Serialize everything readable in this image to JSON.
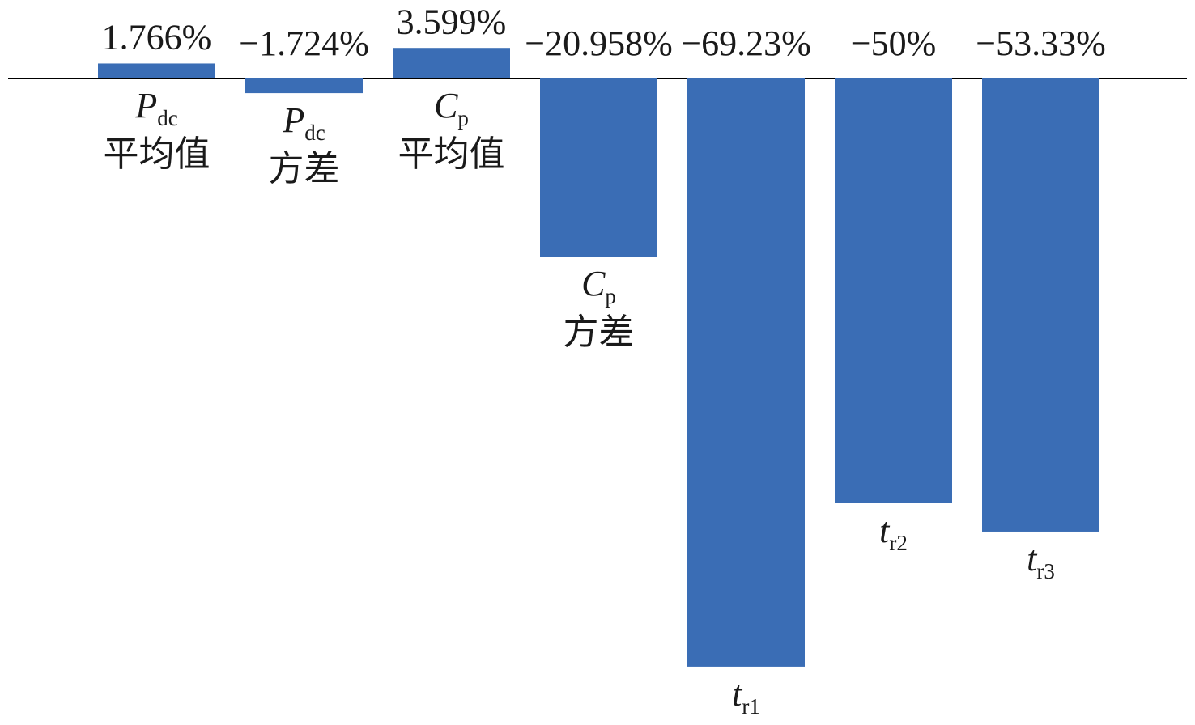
{
  "chart_data": {
    "type": "bar",
    "categories": [
      {
        "symbol": "P",
        "subscript": "dc",
        "text": "平均值"
      },
      {
        "symbol": "P",
        "subscript": "dc",
        "text": "方差"
      },
      {
        "symbol": "C",
        "subscript": "p",
        "text": "平均值"
      },
      {
        "symbol": "C",
        "subscript": "p",
        "text": "方差"
      },
      {
        "symbol": "t",
        "subscript": "r1"
      },
      {
        "symbol": "t",
        "subscript": "r2"
      },
      {
        "symbol": "t",
        "subscript": "r3"
      }
    ],
    "values": [
      1.766,
      -1.724,
      3.599,
      -20.958,
      -69.23,
      -50,
      -53.33
    ],
    "value_labels": [
      "1.766%",
      "−1.724%",
      "3.599%",
      "−20.958%",
      "−69.23%",
      "−50%",
      "−53.33%"
    ],
    "color": "#3a6db5"
  }
}
